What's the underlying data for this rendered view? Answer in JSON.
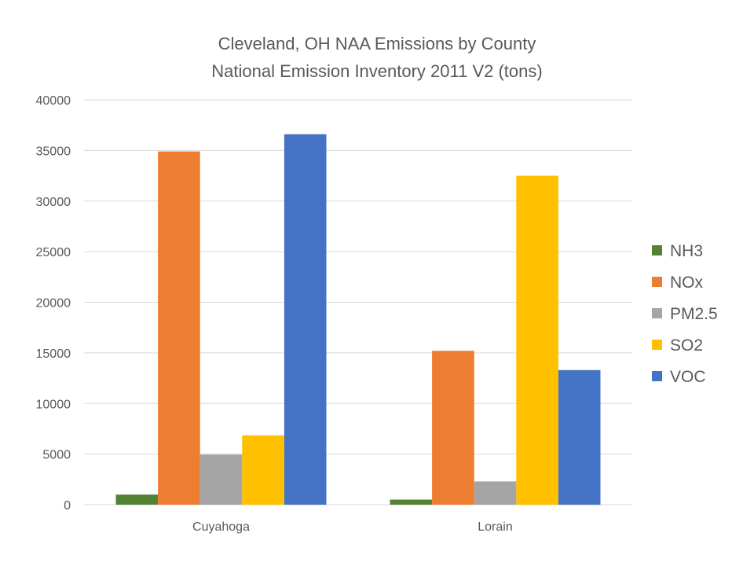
{
  "chart_data": {
    "type": "bar",
    "title": [
      "Cleveland, OH NAA Emissions by County",
      "National Emission Inventory 2011 V2 (tons)"
    ],
    "xlabel": "",
    "ylabel": "",
    "categories": [
      "Cuyahoga",
      "Lorain"
    ],
    "ylim": [
      0,
      40000
    ],
    "yticks": [
      0,
      5000,
      10000,
      15000,
      20000,
      25000,
      30000,
      35000,
      40000
    ],
    "grid": true,
    "legend_position": "right",
    "series": [
      {
        "name": "NH3",
        "color": "#548235",
        "values": [
          1000,
          500
        ]
      },
      {
        "name": "NOx",
        "color": "#ED7D31",
        "values": [
          34900,
          15200
        ]
      },
      {
        "name": "PM2.5",
        "color": "#A5A5A5",
        "values": [
          4950,
          2300
        ]
      },
      {
        "name": "SO2",
        "color": "#FFC000",
        "values": [
          6850,
          32500
        ]
      },
      {
        "name": "VOC",
        "color": "#4472C4",
        "values": [
          36600,
          13300
        ]
      }
    ]
  }
}
